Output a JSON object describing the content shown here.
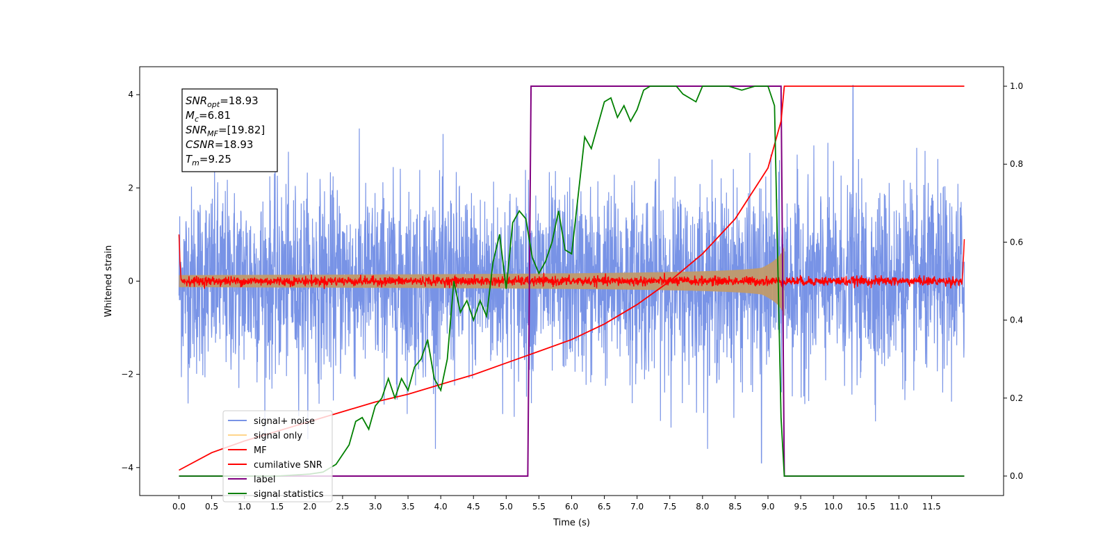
{
  "chart_data": {
    "type": "line",
    "title": "",
    "xlabel": "Time (s)",
    "ylabel": "Whitened strain",
    "xlim": [
      -0.6,
      12.6
    ],
    "ylim": [
      -4.6,
      4.6
    ],
    "y2lim": [
      -0.05,
      1.05
    ],
    "x_ticks": [
      0.0,
      0.5,
      1.0,
      1.5,
      2.0,
      2.5,
      3.0,
      3.5,
      4.0,
      4.5,
      5.0,
      5.5,
      6.0,
      6.5,
      7.0,
      7.5,
      8.0,
      8.5,
      9.0,
      9.5,
      10.0,
      10.5,
      11.0,
      11.5
    ],
    "x_tick_labels": [
      "0.0",
      "0.5",
      "1.0",
      "1.5",
      "2.0",
      "2.5",
      "3.0",
      "3.5",
      "4.0",
      "4.5",
      "5.0",
      "5.5",
      "6.0",
      "6.5",
      "7.0",
      "7.5",
      "8.0",
      "8.5",
      "9.0",
      "9.5",
      "10.0",
      "10.5",
      "11.0",
      "11.5"
    ],
    "y_ticks": [
      4,
      2,
      0,
      -2,
      -4
    ],
    "y_tick_labels": [
      "4",
      "2",
      "0",
      "−2",
      "−4"
    ],
    "y2_ticks": [
      1.0,
      0.8,
      0.6,
      0.4,
      0.2,
      0.0
    ],
    "y2_tick_labels": [
      "1.0",
      "0.8",
      "0.6",
      "0.4",
      "0.2",
      "0.0"
    ],
    "grid": false,
    "legend_position": "lower-left",
    "info_box": {
      "lines": [
        {
          "symbol": "SNR",
          "subscript": "opt",
          "value": "=18.93"
        },
        {
          "symbol": "M",
          "subscript": "c",
          "value": "=6.81"
        },
        {
          "symbol": "SNR",
          "subscript": "MF",
          "value": "=[19.82]"
        },
        {
          "symbol": "CSNR",
          "subscript": "",
          "value": "=18.93"
        },
        {
          "symbol": "T",
          "subscript": "m",
          "value": "=9.25"
        }
      ]
    },
    "series": [
      {
        "name": "signal+ noise",
        "color": "#7893e6",
        "axis": "left",
        "envelope": {
          "x_start": 0.0,
          "x_end": 12.0,
          "sigma": 1.0,
          "max_abs_positive": 4.2,
          "max_abs_negative": -3.9
        }
      },
      {
        "name": "signal only",
        "color": "#ffd58a",
        "fill_color": "#c09a6c",
        "axis": "left",
        "x_start": 0.0,
        "x_merge": 9.25,
        "amplitude_start": 0.13,
        "amplitude_end": 1.1
      },
      {
        "name": "MF",
        "color": "#ff0000",
        "axis": "left",
        "x_start": 0.0,
        "x_end": 12.0,
        "noise_level": 0.05,
        "edge_value_start": 1.0,
        "edge_value_end": 0.9
      },
      {
        "name": "cumilative SNR",
        "color": "#ff0000",
        "axis": "right",
        "x": [
          0.0,
          0.5,
          1.0,
          1.5,
          2.0,
          2.5,
          3.0,
          3.5,
          4.0,
          4.5,
          5.0,
          5.5,
          6.0,
          6.5,
          7.0,
          7.5,
          8.0,
          8.5,
          9.0,
          9.2,
          9.25,
          12.0
        ],
        "y": [
          0.015,
          0.06,
          0.09,
          0.115,
          0.14,
          0.165,
          0.19,
          0.21,
          0.235,
          0.26,
          0.29,
          0.32,
          0.35,
          0.39,
          0.44,
          0.5,
          0.57,
          0.66,
          0.79,
          0.91,
          1.0,
          1.0
        ]
      },
      {
        "name": "label",
        "color": "#800080",
        "axis": "right",
        "x": [
          0.0,
          5.33,
          5.38,
          9.2,
          9.25,
          12.0
        ],
        "y": [
          0.0,
          0.0,
          1.0,
          1.0,
          0.0,
          0.0
        ]
      },
      {
        "name": "signal statistics",
        "color": "#008000",
        "axis": "right",
        "x": [
          0.0,
          0.5,
          1.0,
          1.5,
          2.0,
          2.2,
          2.4,
          2.6,
          2.7,
          2.8,
          2.9,
          3.0,
          3.1,
          3.2,
          3.3,
          3.4,
          3.5,
          3.6,
          3.7,
          3.8,
          3.9,
          4.0,
          4.1,
          4.2,
          4.3,
          4.4,
          4.5,
          4.6,
          4.7,
          4.8,
          4.9,
          5.0,
          5.1,
          5.2,
          5.3,
          5.4,
          5.5,
          5.6,
          5.7,
          5.8,
          5.9,
          6.0,
          6.1,
          6.2,
          6.3,
          6.4,
          6.5,
          6.6,
          6.7,
          6.8,
          6.9,
          7.0,
          7.1,
          7.2,
          7.3,
          7.4,
          7.5,
          7.6,
          7.7,
          7.8,
          7.9,
          8.0,
          8.2,
          8.4,
          8.6,
          8.8,
          9.0,
          9.1,
          9.15,
          9.2,
          9.25,
          9.3,
          12.0
        ],
        "y": [
          0.0,
          0.0,
          0.0,
          0.0,
          0.005,
          0.01,
          0.03,
          0.08,
          0.14,
          0.15,
          0.12,
          0.18,
          0.2,
          0.25,
          0.2,
          0.25,
          0.22,
          0.28,
          0.3,
          0.35,
          0.25,
          0.22,
          0.3,
          0.5,
          0.42,
          0.45,
          0.4,
          0.45,
          0.41,
          0.55,
          0.62,
          0.48,
          0.65,
          0.68,
          0.66,
          0.56,
          0.52,
          0.55,
          0.6,
          0.68,
          0.58,
          0.57,
          0.72,
          0.87,
          0.84,
          0.9,
          0.96,
          0.97,
          0.92,
          0.95,
          0.91,
          0.94,
          0.99,
          1.0,
          1.0,
          1.0,
          1.0,
          1.0,
          0.98,
          0.97,
          0.96,
          1.0,
          1.0,
          1.0,
          0.99,
          1.0,
          1.0,
          0.95,
          0.55,
          0.15,
          0.0,
          0.0,
          0.0
        ]
      }
    ]
  }
}
